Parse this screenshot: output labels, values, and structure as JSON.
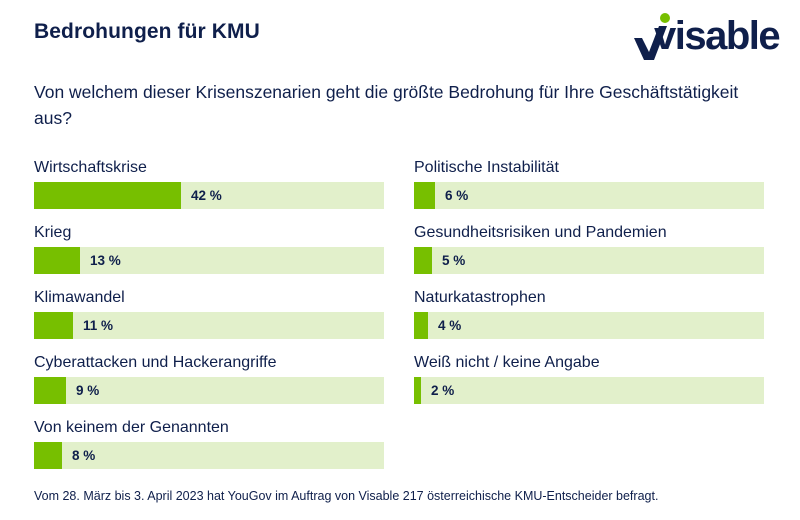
{
  "header": {
    "title": "Bedrohungen für KMU",
    "logo_text": "visable",
    "question": "Von welchem dieser Krisenszenarien geht die größte Bedrohung für Ihre Geschäfts­tätigkeit aus?"
  },
  "colors": {
    "text": "#0f1f4b",
    "bar_fill": "#77bf00",
    "bar_track": "#e2f0cb",
    "logo_dot": "#77bf00"
  },
  "chart_data": {
    "type": "bar",
    "orientation": "horizontal",
    "title": "Bedrohungen für KMU",
    "subtitle": "Von welchem dieser Krisenszenarien geht die größte Bedrohung für Ihre Geschäftstätigkeit aus?",
    "unit": "%",
    "xlim": [
      0,
      100
    ],
    "categories": [
      "Wirtschaftskrise",
      "Krieg",
      "Klimawandel",
      "Cyberattacken und Hackerangriffe",
      "Von keinem der Genannten",
      "Politische Instabilität",
      "Gesundheitsrisiken und Pandemien",
      "Naturkatastrophen",
      "Weiß nicht / keine Angabe"
    ],
    "values": [
      42,
      13,
      11,
      9,
      8,
      6,
      5,
      4,
      2
    ],
    "value_labels": [
      "42 %",
      "13 %",
      "11 %",
      "9 %",
      "8 %",
      "6 %",
      "5 %",
      "4 %",
      "2 %"
    ],
    "columns": {
      "left": [
        0,
        1,
        2,
        3,
        4
      ],
      "right": [
        5,
        6,
        7,
        8
      ]
    }
  },
  "footnote": "Vom 28. März bis 3. April 2023 hat YouGov im Auftrag von Visable 217 österreichische KMU-Entscheider befragt."
}
